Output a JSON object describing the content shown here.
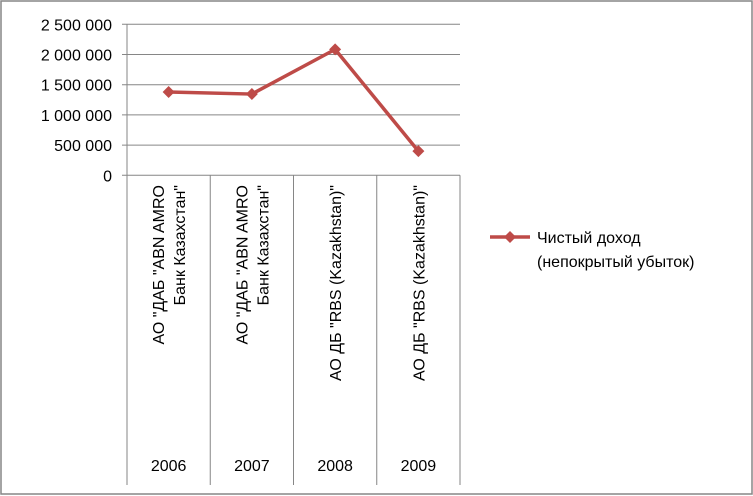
{
  "chart_data": {
    "type": "line",
    "title": "",
    "xlabel": "",
    "ylabel": "",
    "ylim": [
      0,
      2500000
    ],
    "yticks": [
      0,
      500000,
      1000000,
      1500000,
      2000000,
      2500000
    ],
    "ytick_labels": [
      "0",
      "500 000",
      "1 000 000",
      "1 500 000",
      "2 000 000",
      "2 500 000"
    ],
    "grid": true,
    "legend_position": "right",
    "categories": [
      {
        "name_lines": [
          "АО \"ДАБ \"ABN AMRO",
          "Банк Казахстан\""
        ],
        "year": "2006"
      },
      {
        "name_lines": [
          "АО \"ДАБ \"ABN AMRO",
          "Банк Казахстан\""
        ],
        "year": "2007"
      },
      {
        "name_lines": [
          "АО ДБ \"RBS (Kazakhstan)\""
        ],
        "year": "2008"
      },
      {
        "name_lines": [
          "АО ДБ \"RBS (Kazakhstan)\""
        ],
        "year": "2009"
      }
    ],
    "series": [
      {
        "name": "Чистый доход (непокрытый убыток)",
        "legend_lines": [
          "Чистый доход",
          "(непокрытый убыток)"
        ],
        "color": "#BE4B48",
        "marker": "diamond",
        "values": [
          1380000,
          1345000,
          2085000,
          400000
        ]
      }
    ]
  }
}
